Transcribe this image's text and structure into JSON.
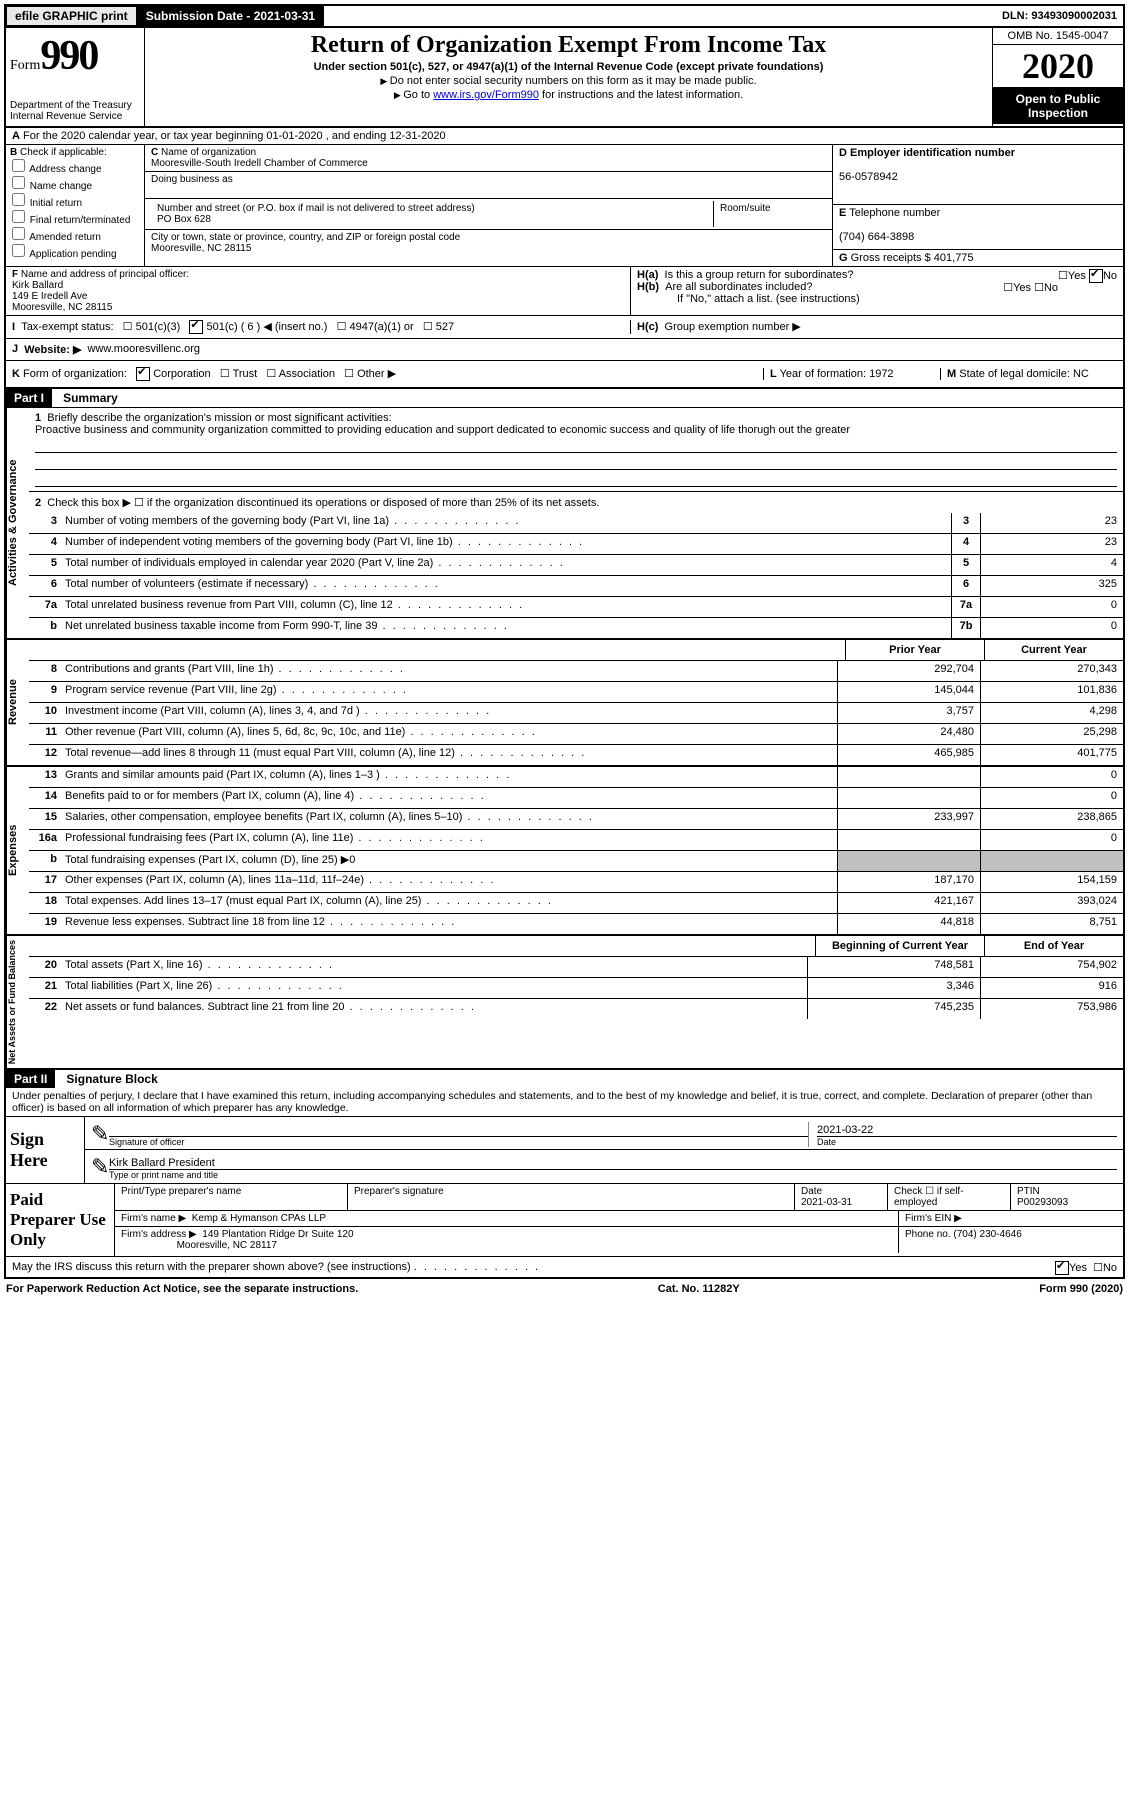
{
  "topbar": {
    "efile": "efile GRAPHIC print",
    "submission_label": "Submission Date",
    "submission_date": "2021-03-31",
    "dln_label": "DLN:",
    "dln": "93493090002031"
  },
  "header": {
    "form_word": "Form",
    "form_num": "990",
    "dept": "Department of the Treasury\nInternal Revenue Service",
    "title": "Return of Organization Exempt From Income Tax",
    "subtitle": "Under section 501(c), 527, or 4947(a)(1) of the Internal Revenue Code (except private foundations)",
    "note1": "Do not enter social security numbers on this form as it may be made public.",
    "note2_pre": "Go to ",
    "note2_link": "www.irs.gov/Form990",
    "note2_post": " for instructions and the latest information.",
    "omb": "OMB No. 1545-0047",
    "year": "2020",
    "open": "Open to Public Inspection"
  },
  "A": {
    "line": "For the 2020 calendar year, or tax year beginning 01-01-2020    , and ending 12-31-2020"
  },
  "B": {
    "label": "Check if applicable:",
    "opts": [
      "Address change",
      "Name change",
      "Initial return",
      "Final return/terminated",
      "Amended return",
      "Application pending"
    ]
  },
  "C": {
    "name_lbl": "Name of organization",
    "name": "Mooresville-South Iredell Chamber of Commerce",
    "dba_lbl": "Doing business as",
    "addr_lbl": "Number and street (or P.O. box if mail is not delivered to street address)",
    "room_lbl": "Room/suite",
    "addr": "PO Box 628",
    "city_lbl": "City or town, state or province, country, and ZIP or foreign postal code",
    "city": "Mooresville, NC  28115"
  },
  "D": {
    "ein_lbl": "Employer identification number",
    "ein": "56-0578942"
  },
  "E": {
    "tel_lbl": "Telephone number",
    "tel": "(704) 664-3898"
  },
  "G": {
    "gross_lbl": "Gross receipts $",
    "gross": "401,775"
  },
  "F": {
    "lbl": "Name and address of principal officer:",
    "name": "Kirk Ballard",
    "addr1": "149 E Iredell Ave",
    "addr2": "Mooresville, NC  28115"
  },
  "H": {
    "a": "Is this a group return for subordinates?",
    "b": "Are all subordinates included?",
    "b_note": "If \"No,\" attach a list. (see instructions)",
    "c": "Group exemption number ▶",
    "yes": "Yes",
    "no": "No"
  },
  "I": {
    "lbl": "Tax-exempt status:",
    "o1": "501(c)(3)",
    "o2": "501(c) ( 6 ) ◀ (insert no.)",
    "o3": "4947(a)(1) or",
    "o4": "527"
  },
  "J": {
    "lbl": "Website: ▶",
    "val": "www.mooresvillenc.org"
  },
  "K": {
    "lbl": "Form of organization:",
    "o1": "Corporation",
    "o2": "Trust",
    "o3": "Association",
    "o4": "Other ▶"
  },
  "L": {
    "lbl": "Year of formation:",
    "val": "1972"
  },
  "M": {
    "lbl": "State of legal domicile:",
    "val": "NC"
  },
  "part1": {
    "hdr": "Part I",
    "title": "Summary",
    "q1": "Briefly describe the organization's mission or most significant activities:",
    "q1_val": "Proactive business and community organization committed to providing education and support dedicated to economic success and quality of life thorugh out the greater",
    "q2": "Check this box ▶ ☐  if the organization discontinued its operations or disposed of more than 25% of its net assets.",
    "side_ag": "Activities & Governance",
    "side_rev": "Revenue",
    "side_exp": "Expenses",
    "side_net": "Net Assets or Fund Balances",
    "col_prior": "Prior Year",
    "col_curr": "Current Year",
    "col_beg": "Beginning of Current Year",
    "col_end": "End of Year",
    "lines_gov": [
      {
        "n": "3",
        "d": "Number of voting members of the governing body (Part VI, line 1a)",
        "box": "3",
        "v": "23"
      },
      {
        "n": "4",
        "d": "Number of independent voting members of the governing body (Part VI, line 1b)",
        "box": "4",
        "v": "23"
      },
      {
        "n": "5",
        "d": "Total number of individuals employed in calendar year 2020 (Part V, line 2a)",
        "box": "5",
        "v": "4"
      },
      {
        "n": "6",
        "d": "Total number of volunteers (estimate if necessary)",
        "box": "6",
        "v": "325"
      },
      {
        "n": "7a",
        "d": "Total unrelated business revenue from Part VIII, column (C), line 12",
        "box": "7a",
        "v": "0"
      },
      {
        "n": "b",
        "d": "Net unrelated business taxable income from Form 990-T, line 39",
        "box": "7b",
        "v": "0"
      }
    ],
    "lines_rev": [
      {
        "n": "8",
        "d": "Contributions and grants (Part VIII, line 1h)",
        "p": "292,704",
        "c": "270,343"
      },
      {
        "n": "9",
        "d": "Program service revenue (Part VIII, line 2g)",
        "p": "145,044",
        "c": "101,836"
      },
      {
        "n": "10",
        "d": "Investment income (Part VIII, column (A), lines 3, 4, and 7d )",
        "p": "3,757",
        "c": "4,298"
      },
      {
        "n": "11",
        "d": "Other revenue (Part VIII, column (A), lines 5, 6d, 8c, 9c, 10c, and 11e)",
        "p": "24,480",
        "c": "25,298"
      },
      {
        "n": "12",
        "d": "Total revenue—add lines 8 through 11 (must equal Part VIII, column (A), line 12)",
        "p": "465,985",
        "c": "401,775"
      }
    ],
    "lines_exp": [
      {
        "n": "13",
        "d": "Grants and similar amounts paid (Part IX, column (A), lines 1–3 )",
        "p": "",
        "c": "0"
      },
      {
        "n": "14",
        "d": "Benefits paid to or for members (Part IX, column (A), line 4)",
        "p": "",
        "c": "0"
      },
      {
        "n": "15",
        "d": "Salaries, other compensation, employee benefits (Part IX, column (A), lines 5–10)",
        "p": "233,997",
        "c": "238,865"
      },
      {
        "n": "16a",
        "d": "Professional fundraising fees (Part IX, column (A), line 11e)",
        "p": "",
        "c": "0"
      },
      {
        "n": "b",
        "d": "Total fundraising expenses (Part IX, column (D), line 25) ▶0",
        "p": "SHADE",
        "c": "SHADE"
      },
      {
        "n": "17",
        "d": "Other expenses (Part IX, column (A), lines 11a–11d, 11f–24e)",
        "p": "187,170",
        "c": "154,159"
      },
      {
        "n": "18",
        "d": "Total expenses. Add lines 13–17 (must equal Part IX, column (A), line 25)",
        "p": "421,167",
        "c": "393,024"
      },
      {
        "n": "19",
        "d": "Revenue less expenses. Subtract line 18 from line 12",
        "p": "44,818",
        "c": "8,751"
      }
    ],
    "lines_net": [
      {
        "n": "20",
        "d": "Total assets (Part X, line 16)",
        "p": "748,581",
        "c": "754,902"
      },
      {
        "n": "21",
        "d": "Total liabilities (Part X, line 26)",
        "p": "3,346",
        "c": "916"
      },
      {
        "n": "22",
        "d": "Net assets or fund balances. Subtract line 21 from line 20",
        "p": "745,235",
        "c": "753,986"
      }
    ]
  },
  "part2": {
    "hdr": "Part II",
    "title": "Signature Block",
    "penalties": "Under penalties of perjury, I declare that I have examined this return, including accompanying schedules and statements, and to the best of my knowledge and belief, it is true, correct, and complete. Declaration of preparer (other than officer) is based on all information of which preparer has any knowledge.",
    "sign_here": "Sign Here",
    "sig_lbl": "Signature of officer",
    "date_lbl": "Date",
    "sig_date": "2021-03-22",
    "name_title": "Kirk Ballard  President",
    "name_title_lbl": "Type or print name and title",
    "paid": "Paid Preparer Use Only",
    "pp_name_lbl": "Print/Type preparer's name",
    "pp_sig_lbl": "Preparer's signature",
    "pp_date_lbl": "Date",
    "pp_date": "2021-03-31",
    "pp_check_lbl": "Check ☐ if self-employed",
    "ptin_lbl": "PTIN",
    "ptin": "P00293093",
    "firm_name_lbl": "Firm's name ▶",
    "firm_name": "Kemp & Hymanson CPAs LLP",
    "firm_ein_lbl": "Firm's EIN ▶",
    "firm_addr_lbl": "Firm's address ▶",
    "firm_addr": "149 Plantation Ridge Dr Suite 120",
    "firm_city": "Mooresville, NC  28117",
    "phone_lbl": "Phone no.",
    "phone": "(704) 230-4646",
    "discuss": "May the IRS discuss this return with the preparer shown above? (see instructions)"
  },
  "footer": {
    "pra": "For Paperwork Reduction Act Notice, see the separate instructions.",
    "cat": "Cat. No. 11282Y",
    "form": "Form 990 (2020)"
  }
}
